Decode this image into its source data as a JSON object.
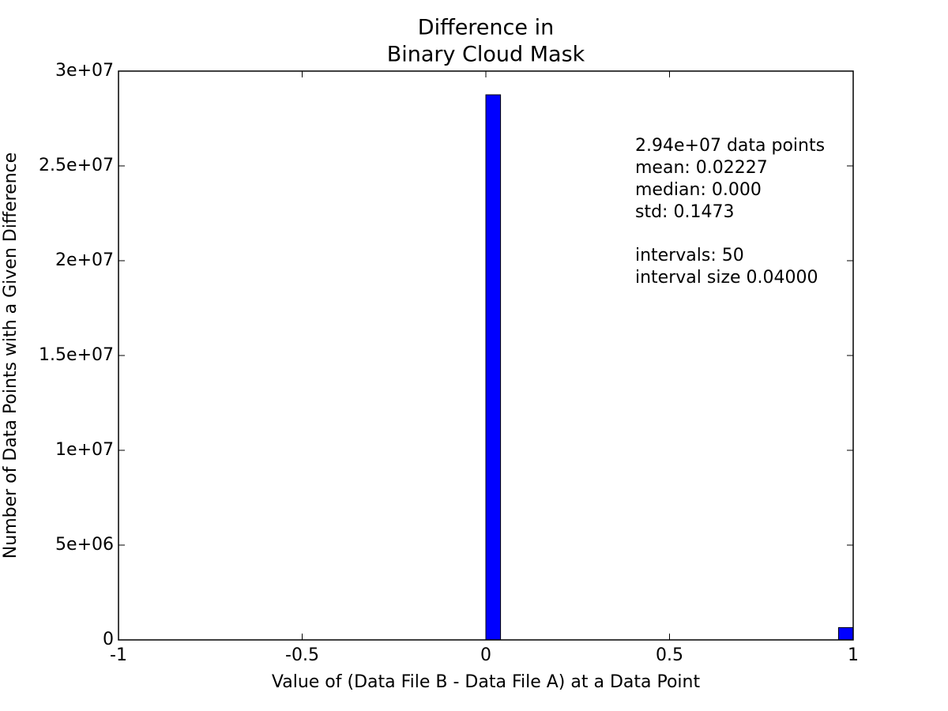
{
  "chart_data": {
    "type": "histogram",
    "title": [
      "Difference in",
      "Binary Cloud Mask"
    ],
    "xlabel": "Value of (Data File B - Data File A) at a Data Point",
    "ylabel": "Number of Data Points with a Given Difference",
    "bins": [
      -1,
      -0.96,
      -0.92,
      -0.88,
      -0.84,
      -0.8,
      -0.76,
      -0.72,
      -0.68,
      -0.64,
      -0.6,
      -0.56,
      -0.52,
      -0.48,
      -0.44,
      -0.4,
      -0.36,
      -0.32,
      -0.28,
      -0.24,
      -0.2,
      -0.16,
      -0.12,
      -0.08,
      -0.04,
      0,
      0.04,
      0.08,
      0.12,
      0.16,
      0.2,
      0.24,
      0.28,
      0.32,
      0.36,
      0.4,
      0.44,
      0.48,
      0.52,
      0.56,
      0.6,
      0.64,
      0.68,
      0.72,
      0.76,
      0.8,
      0.84,
      0.88,
      0.92,
      0.96,
      1
    ],
    "counts": [
      0,
      0,
      0,
      0,
      0,
      0,
      0,
      0,
      0,
      0,
      0,
      0,
      0,
      0,
      0,
      0,
      0,
      0,
      0,
      0,
      0,
      0,
      0,
      0,
      0,
      28750000,
      0,
      0,
      0,
      0,
      0,
      0,
      0,
      0,
      0,
      0,
      0,
      0,
      0,
      0,
      0,
      0,
      0,
      0,
      0,
      0,
      0,
      0,
      0,
      650000
    ],
    "color": "#0000ff",
    "xlim": [
      -1,
      1
    ],
    "xticks": [
      -1,
      -0.5,
      0,
      0.5,
      1
    ],
    "ylim": [
      0,
      30000000
    ],
    "yticks": [
      0,
      {
        "value": 5000000,
        "label": "5e+06"
      },
      {
        "value": 10000000,
        "label": "1e+07"
      },
      {
        "value": 15000000,
        "label": "1.5e+07"
      },
      {
        "value": 20000000,
        "label": "2e+07"
      },
      {
        "value": 25000000,
        "label": "2.5e+07"
      },
      {
        "value": 30000000,
        "label": "3e+07"
      }
    ],
    "annotations": [
      "2.94e+07 data points",
      "mean: 0.02227",
      "median: 0.000",
      "std: 0.1473",
      "intervals: 50",
      "interval size 0.04000"
    ]
  }
}
